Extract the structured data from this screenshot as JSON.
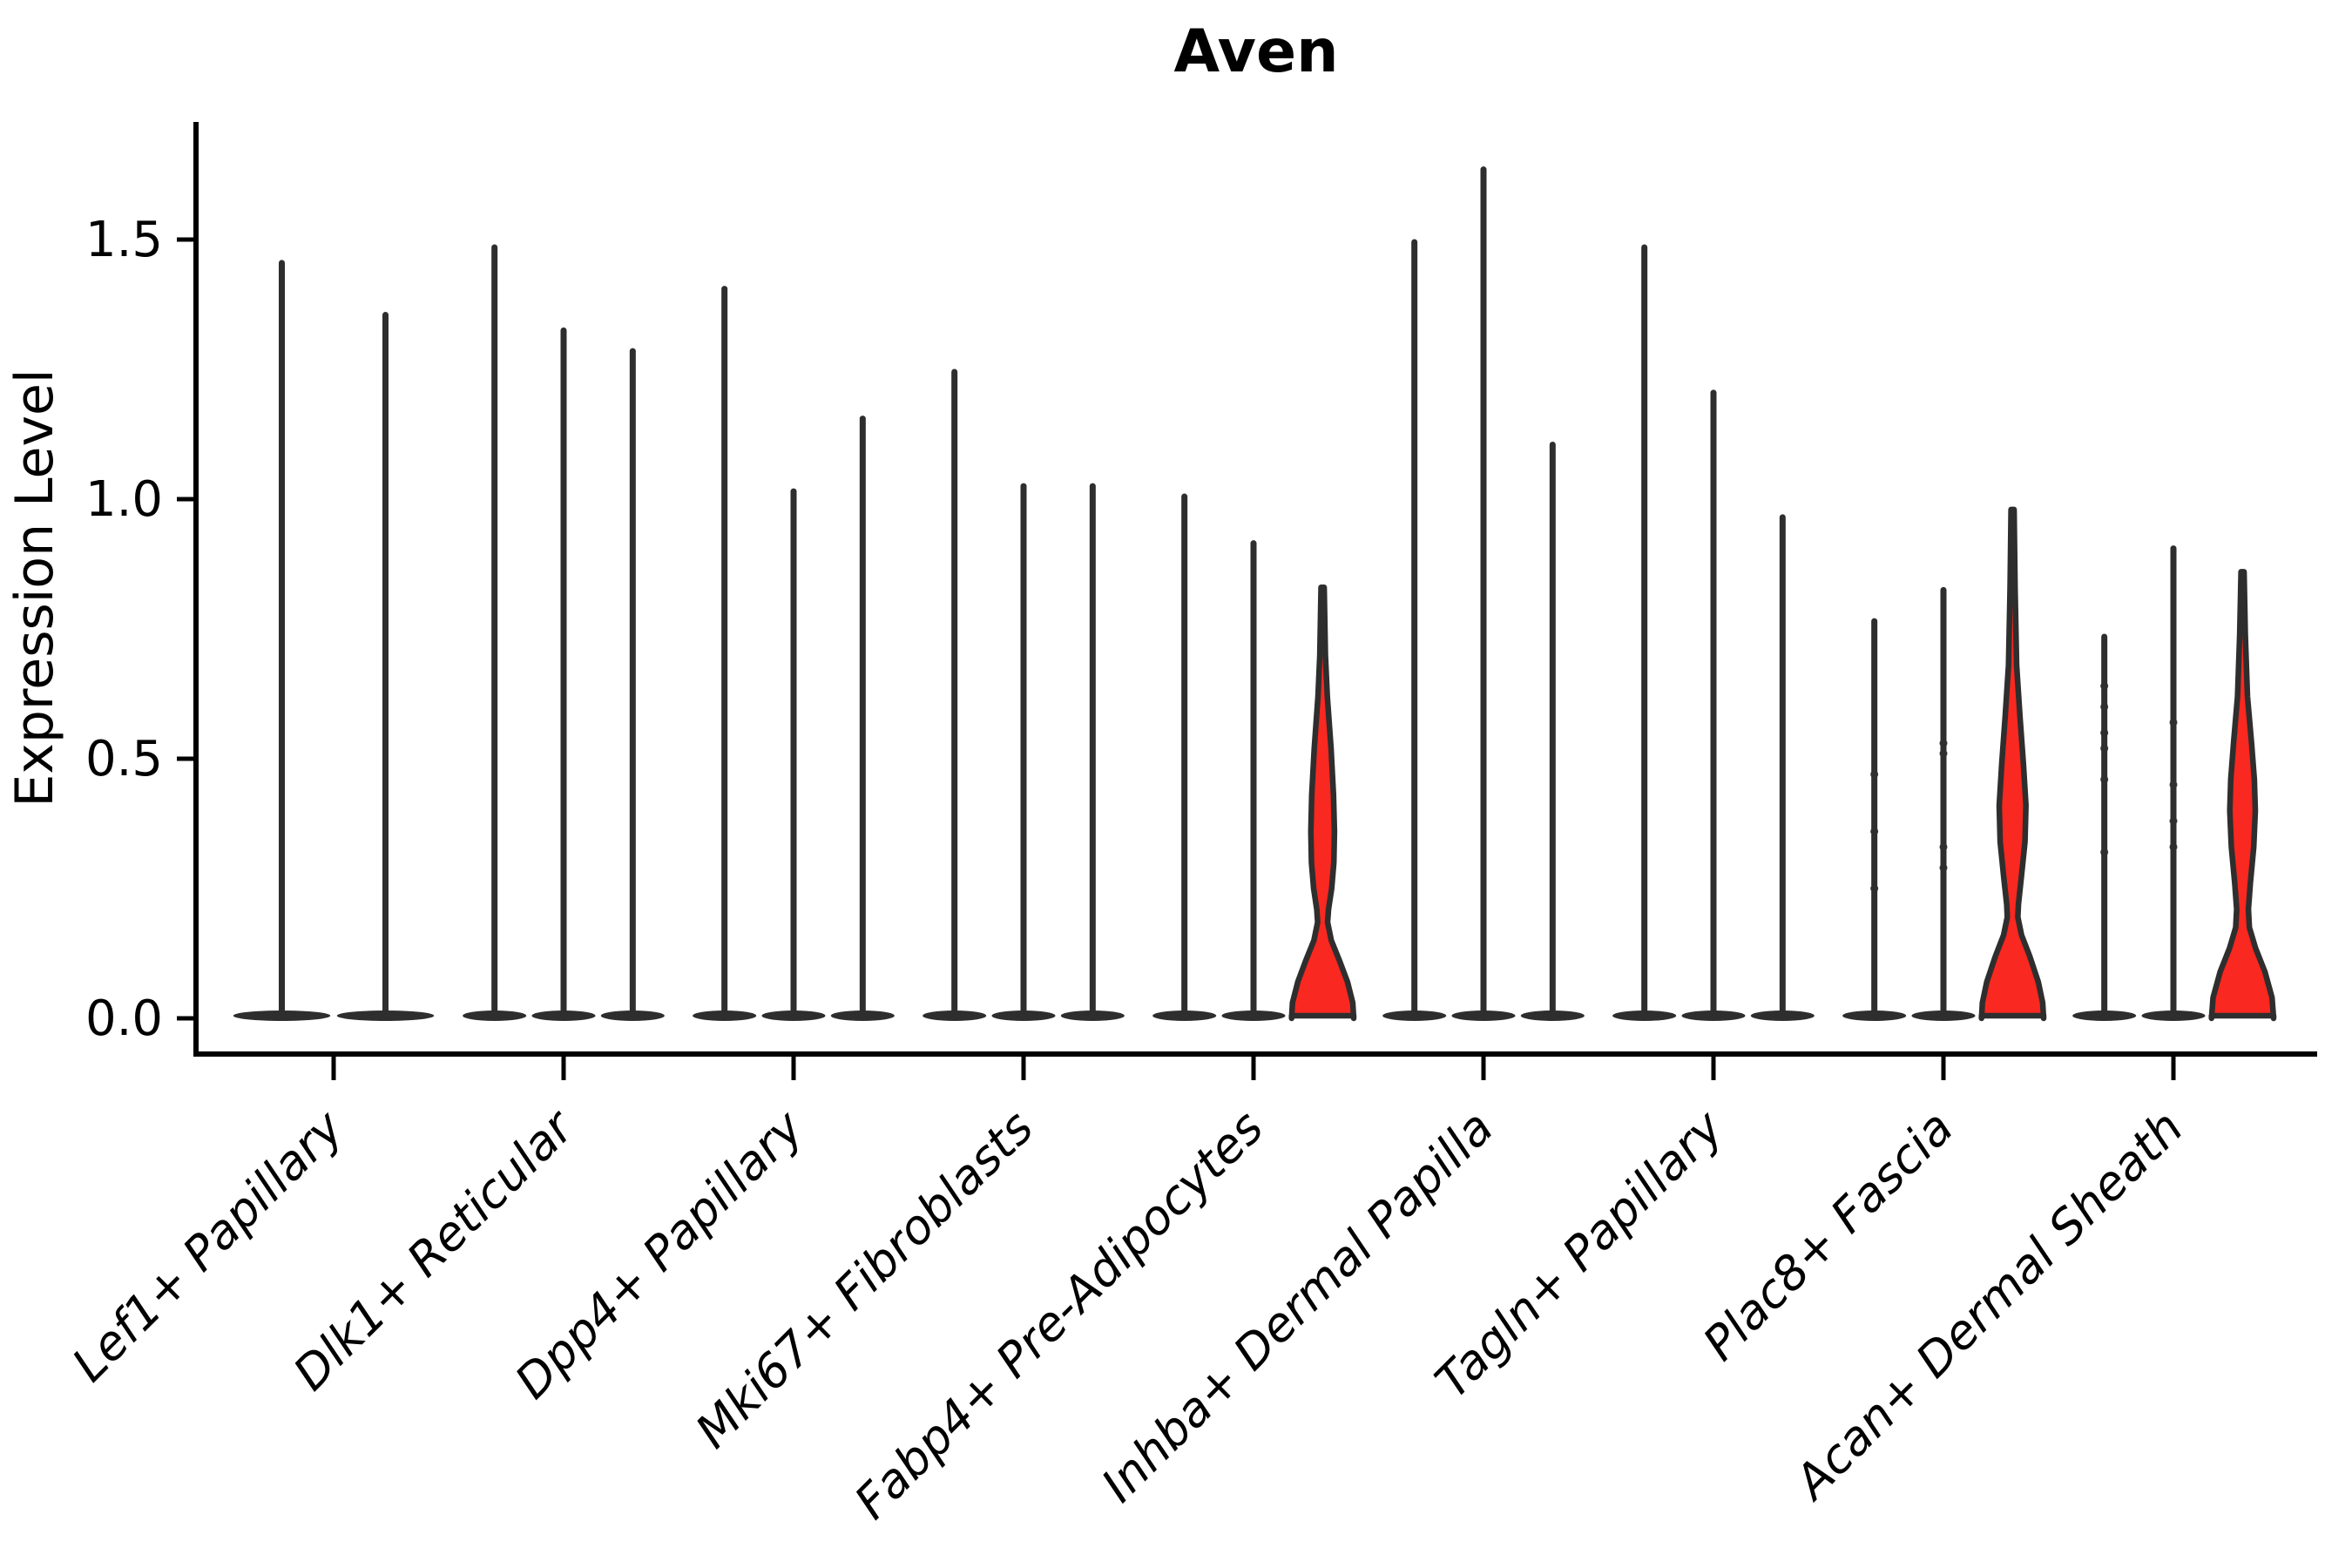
{
  "chart_data": {
    "type": "violin",
    "title": "Aven",
    "ylabel": "Expression Level",
    "xlabel": "",
    "ylim": [
      -0.07,
      1.73
    ],
    "yticks": [
      "0.0",
      "0.5",
      "1.0",
      "1.5"
    ],
    "ytick_values": [
      0.0,
      0.5,
      1.0,
      1.5
    ],
    "grid": false,
    "legend": "none",
    "colors": {
      "violin_stroke": "#2e2e2e",
      "highlight_fill": "#f92820",
      "background": "#ffffff"
    },
    "categories": [
      "Lef1+ Papillary",
      "Dlk1+ Reticular",
      "Dpp4+ Papillary",
      "Mki67+ Fibroblasts",
      "Fabp4+ Pre-Adipocytes",
      "Inhba+ Dermal Papilla",
      "Tagln+ Papillary",
      "Plac8+ Fascia",
      "Acan+ Dermal Sheath"
    ],
    "groups": [
      {
        "label": "Lef1+ Papillary",
        "violins": [
          {
            "max": 1.46
          },
          {
            "max": 1.36
          }
        ]
      },
      {
        "label": "Dlk1+ Reticular",
        "violins": [
          {
            "max": 1.49
          },
          {
            "max": 1.33
          },
          {
            "max": 1.29
          }
        ]
      },
      {
        "label": "Dpp4+ Papillary",
        "violins": [
          {
            "max": 1.41
          },
          {
            "max": 1.02
          },
          {
            "max": 1.16
          }
        ]
      },
      {
        "label": "Mki67+ Fibroblasts",
        "violins": [
          {
            "max": 1.25
          },
          {
            "max": 1.03
          },
          {
            "max": 1.03
          }
        ]
      },
      {
        "label": "Fabp4+ Pre-Adipocytes",
        "violins": [
          {
            "max": 1.01
          },
          {
            "max": 0.92
          },
          {
            "max": 0.83,
            "highlight": true,
            "profile": [
              [
                0.83,
                0.05
              ],
              [
                0.7,
                0.09
              ],
              [
                0.62,
                0.15
              ],
              [
                0.52,
                0.27
              ],
              [
                0.43,
                0.35
              ],
              [
                0.36,
                0.38
              ],
              [
                0.3,
                0.36
              ],
              [
                0.25,
                0.29
              ],
              [
                0.21,
                0.19
              ],
              [
                0.185,
                0.16
              ],
              [
                0.15,
                0.28
              ],
              [
                0.11,
                0.55
              ],
              [
                0.07,
                0.8
              ],
              [
                0.03,
                0.97
              ],
              [
                0.0,
                1.0
              ]
            ]
          }
        ]
      },
      {
        "label": "Inhba+ Dermal Papilla",
        "violins": [
          {
            "max": 1.5
          },
          {
            "max": 1.64
          },
          {
            "max": 1.11
          }
        ]
      },
      {
        "label": "Tagln+ Papillary",
        "violins": [
          {
            "max": 1.49
          },
          {
            "max": 1.21
          },
          {
            "max": 0.97
          }
        ]
      },
      {
        "label": "Plac8+ Fascia",
        "violins": [
          {
            "max": 0.77,
            "points": [
              0.47,
              0.36,
              0.25
            ]
          },
          {
            "max": 0.83,
            "points": [
              0.53,
              0.51,
              0.33,
              0.29
            ]
          },
          {
            "max": 0.98,
            "highlight": true,
            "profile": [
              [
                0.98,
                0.05
              ],
              [
                0.83,
                0.08
              ],
              [
                0.68,
                0.13
              ],
              [
                0.58,
                0.24
              ],
              [
                0.49,
                0.35
              ],
              [
                0.41,
                0.43
              ],
              [
                0.34,
                0.4
              ],
              [
                0.27,
                0.28
              ],
              [
                0.22,
                0.19
              ],
              [
                0.195,
                0.17
              ],
              [
                0.16,
                0.29
              ],
              [
                0.12,
                0.55
              ],
              [
                0.07,
                0.83
              ],
              [
                0.03,
                0.97
              ],
              [
                0.0,
                1.0
              ]
            ]
          }
        ]
      },
      {
        "label": "Acan+ Dermal Sheath",
        "violins": [
          {
            "max": 0.74,
            "points": [
              0.64,
              0.6,
              0.55,
              0.52,
              0.46,
              0.32
            ]
          },
          {
            "max": 0.91,
            "points": [
              0.57,
              0.45,
              0.38,
              0.33
            ]
          },
          {
            "max": 0.86,
            "highlight": true,
            "profile": [
              [
                0.86,
                0.05
              ],
              [
                0.74,
                0.09
              ],
              [
                0.62,
                0.16
              ],
              [
                0.53,
                0.29
              ],
              [
                0.46,
                0.38
              ],
              [
                0.4,
                0.41
              ],
              [
                0.33,
                0.36
              ],
              [
                0.26,
                0.25
              ],
              [
                0.21,
                0.19
              ],
              [
                0.175,
                0.22
              ],
              [
                0.135,
                0.42
              ],
              [
                0.09,
                0.72
              ],
              [
                0.04,
                0.95
              ],
              [
                0.0,
                1.0
              ]
            ]
          }
        ]
      }
    ]
  }
}
